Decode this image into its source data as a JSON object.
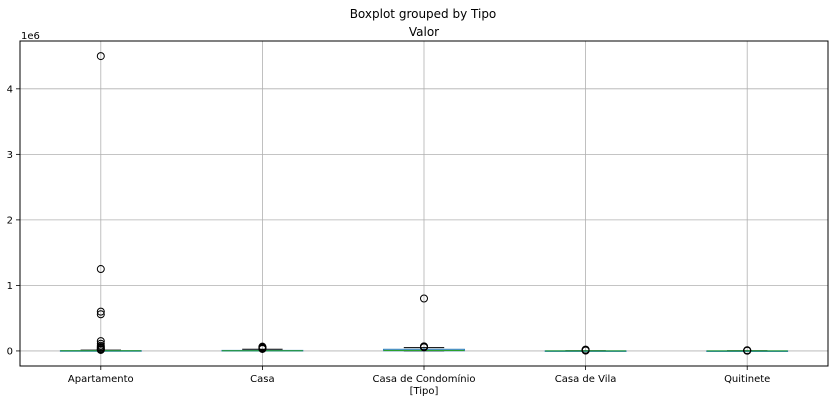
{
  "chart_data": {
    "type": "boxplot",
    "suptitle": "Boxplot grouped by Tipo",
    "title": "Valor",
    "xlabel": "[Tipo]",
    "ylabel": "",
    "y_offset_label": "1e6",
    "y_scale": 1000000,
    "ylim": [
      -230000,
      4730000
    ],
    "yticks": [
      0,
      1000000,
      2000000,
      3000000,
      4000000
    ],
    "ytick_labels": [
      "0",
      "1",
      "2",
      "3",
      "4"
    ],
    "grid": true,
    "categories": [
      "Apartamento",
      "Casa",
      "Casa de Condomínio",
      "Casa de Vila",
      "Quitinete"
    ],
    "boxes": [
      {
        "min": 100,
        "q1": 1500,
        "median": 2500,
        "q3": 4500,
        "max": 12000,
        "outliers": [
          4500000,
          1250000,
          600000,
          560000,
          150000,
          110000,
          80000,
          60000,
          45000,
          30000,
          20000,
          15000
        ]
      },
      {
        "min": 100,
        "q1": 1500,
        "median": 3000,
        "q3": 8000,
        "max": 25000,
        "outliers": [
          65000,
          55000,
          45000,
          35000,
          30000
        ]
      },
      {
        "min": 100,
        "q1": 3000,
        "median": 6000,
        "q3": 25000,
        "max": 50000,
        "outliers": [
          800000,
          70000,
          60000,
          55000
        ]
      },
      {
        "min": 100,
        "q1": 800,
        "median": 1200,
        "q3": 1800,
        "max": 3000,
        "outliers": [
          20000,
          15000,
          10000,
          8000,
          6000
        ]
      },
      {
        "min": 100,
        "q1": 600,
        "median": 900,
        "q3": 1300,
        "max": 2000,
        "outliers": [
          10000,
          8000,
          6000,
          5000,
          4000
        ]
      }
    ],
    "colors": {
      "box": "#1f77b4",
      "whisker": "#1f77b4",
      "median": "#2ca02c",
      "flier_edge": "#000000",
      "grid": "#b0b0b0",
      "axes": "#000000"
    }
  }
}
